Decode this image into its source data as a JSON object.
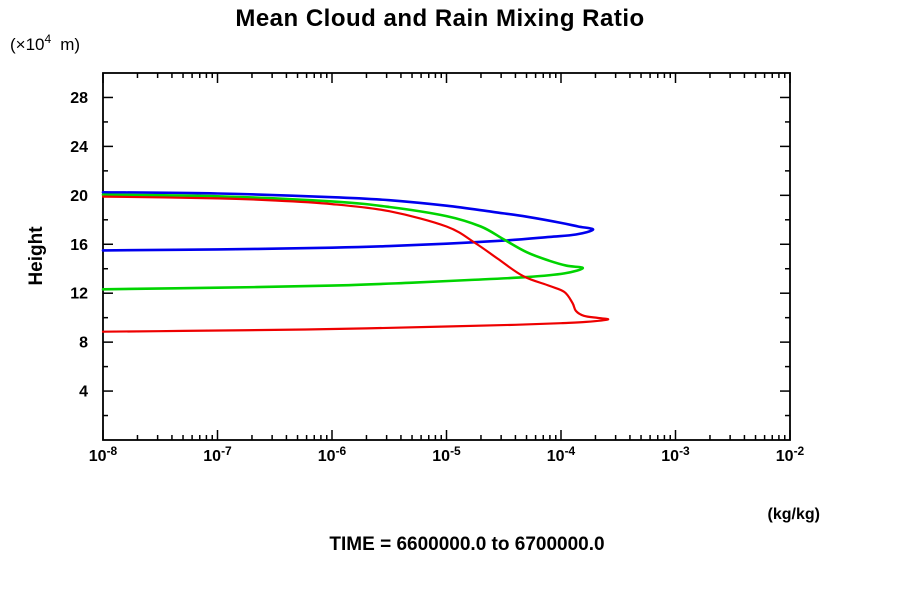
{
  "page": {
    "background": "#ffffff"
  },
  "chart_data": {
    "type": "line",
    "title": "Mean Cloud and Rain Mixing Ratio",
    "footer": "TIME = 6600000.0 to 6700000.0",
    "grid": "off",
    "legend": "none",
    "y_axis": {
      "label": "Height",
      "unit_prefix": "(×10",
      "unit_exp": "4",
      "unit_suffix": "m)",
      "lim": [
        0,
        30
      ],
      "major_ticks": [
        4,
        8,
        12,
        16,
        20,
        24,
        28
      ],
      "minor_ticks": [
        2,
        6,
        10,
        14,
        18,
        22,
        26
      ]
    },
    "x_axis": {
      "unit": "(kg/kg)",
      "scale": "log10",
      "log_lim": [
        -8,
        -2
      ],
      "tick_base": "10",
      "major_tick_exponents": [
        -8,
        -7,
        -6,
        -5,
        -4,
        -3,
        -2
      ]
    },
    "series": [
      {
        "name": "profile-blue",
        "color": "#0000ee",
        "width": 2.6,
        "points_logx_height": [
          [
            -8,
            20.25
          ],
          [
            -7,
            20.15
          ],
          [
            -6,
            19.85
          ],
          [
            -5.5,
            19.6
          ],
          [
            -5,
            19.15
          ],
          [
            -4.6,
            18.65
          ],
          [
            -4.3,
            18.25
          ],
          [
            -4.0,
            17.75
          ],
          [
            -3.85,
            17.45
          ],
          [
            -3.72,
            17.2
          ],
          [
            -3.87,
            16.8
          ],
          [
            -4.1,
            16.6
          ],
          [
            -4.5,
            16.3
          ],
          [
            -5,
            16.05
          ],
          [
            -5.5,
            15.85
          ],
          [
            -6,
            15.72
          ],
          [
            -7,
            15.58
          ],
          [
            -8,
            15.5
          ]
        ]
      },
      {
        "name": "profile-green",
        "color": "#00d400",
        "width": 2.6,
        "points_logx_height": [
          [
            -8,
            20.05
          ],
          [
            -7,
            19.92
          ],
          [
            -6,
            19.5
          ],
          [
            -5.5,
            19.05
          ],
          [
            -5,
            18.3
          ],
          [
            -4.7,
            17.45
          ],
          [
            -4.5,
            16.4
          ],
          [
            -4.3,
            15.35
          ],
          [
            -4.1,
            14.65
          ],
          [
            -3.95,
            14.25
          ],
          [
            -3.81,
            14.05
          ],
          [
            -3.97,
            13.62
          ],
          [
            -4.3,
            13.32
          ],
          [
            -4.8,
            13.08
          ],
          [
            -5.3,
            12.86
          ],
          [
            -6,
            12.62
          ],
          [
            -7,
            12.45
          ],
          [
            -8,
            12.32
          ]
        ]
      },
      {
        "name": "profile-red",
        "color": "#ee0000",
        "width": 2.2,
        "points_logx_height": [
          [
            -8,
            19.9
          ],
          [
            -7,
            19.75
          ],
          [
            -6.5,
            19.58
          ],
          [
            -6,
            19.28
          ],
          [
            -5.5,
            18.7
          ],
          [
            -5,
            17.45
          ],
          [
            -4.75,
            16.1
          ],
          [
            -4.55,
            14.8
          ],
          [
            -4.33,
            13.4
          ],
          [
            -4.1,
            12.6
          ],
          [
            -3.97,
            12.1
          ],
          [
            -3.9,
            11.2
          ],
          [
            -3.87,
            10.55
          ],
          [
            -3.8,
            10.15
          ],
          [
            -3.68,
            9.98
          ],
          [
            -3.59,
            9.85
          ],
          [
            -3.78,
            9.65
          ],
          [
            -4.0,
            9.55
          ],
          [
            -4.4,
            9.42
          ],
          [
            -5.0,
            9.28
          ],
          [
            -5.7,
            9.12
          ],
          [
            -6.5,
            9.0
          ],
          [
            -7.3,
            8.92
          ],
          [
            -8,
            8.85
          ]
        ]
      }
    ]
  }
}
